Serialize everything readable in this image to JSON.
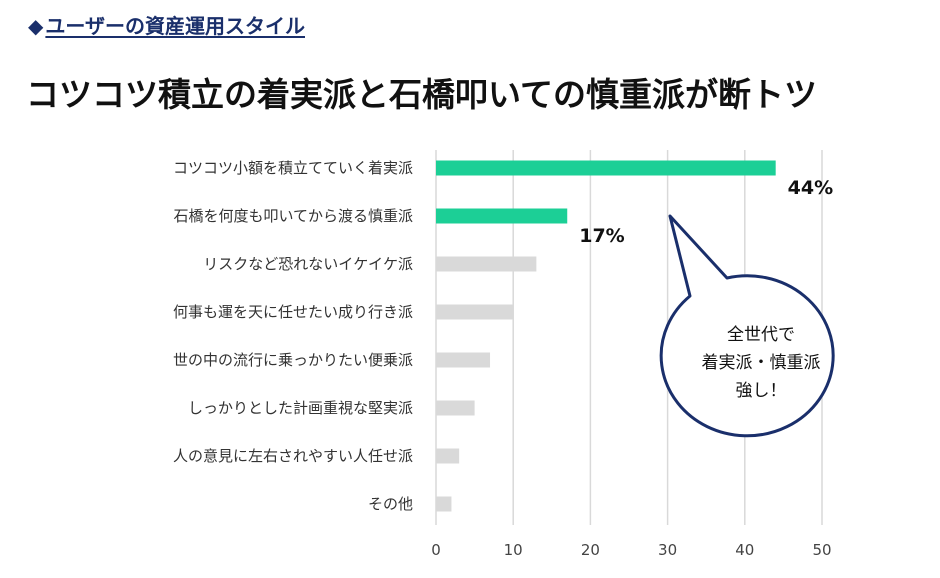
{
  "header": {
    "section_label": "ユーザーの資産運用スタイル",
    "section_marker": "◆",
    "title": "コツコツ積立の着実派と石橋叩いての慎重派が断トツ"
  },
  "callout": {
    "lines": [
      "全世代で",
      "着実派・慎重派",
      "強し！"
    ]
  },
  "colors": {
    "highlight": "#1ccf96",
    "muted": "#d9d9d9",
    "grid": "#d9d9d9",
    "callout_border": "#1a2f6b",
    "title_accent": "#1a2f6b"
  },
  "chart_data": {
    "type": "bar",
    "orientation": "horizontal",
    "categories": [
      "コツコツ小額を積立てていく着実派",
      "石橋を何度も叩いてから渡る慎重派",
      "リスクなど恐れないイケイケ派",
      "何事も運を天に任せたい成り行き派",
      "世の中の流行に乗っかりたい便乗派",
      "しっかりとした計画重視な堅実派",
      "人の意見に左右されやすい人任せ派",
      "その他"
    ],
    "values": [
      44,
      17,
      13,
      10,
      7,
      5,
      3,
      2
    ],
    "highlighted": [
      true,
      true,
      false,
      false,
      false,
      false,
      false,
      false
    ],
    "data_labels": [
      "44%",
      "17%",
      "",
      "",
      "",
      "",
      "",
      ""
    ],
    "xlim": [
      0,
      50
    ],
    "xticks": [
      0,
      10,
      20,
      30,
      40,
      50
    ],
    "xlabel": "",
    "ylabel": "",
    "grid": true
  }
}
